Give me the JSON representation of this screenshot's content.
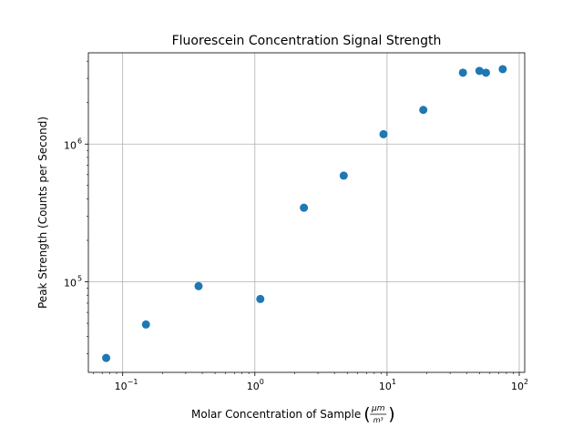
{
  "chart_data": {
    "type": "scatter",
    "title": "Fluorescein Concentration Signal Strength",
    "xlabel": {
      "text": "Molar Concentration of Sample",
      "unit_numerator": "μm",
      "unit_denominator": "m³"
    },
    "ylabel": "Peak Strength (Counts per Second)",
    "xscale": "log",
    "yscale": "log",
    "xlim": [
      0.055,
      110
    ],
    "ylim": [
      22000,
      4600000
    ],
    "grid": true,
    "marker_color": "#1f77b4",
    "x_ticks": [
      {
        "value": 0.1,
        "base": "10",
        "exp": "−1"
      },
      {
        "value": 1,
        "base": "10",
        "exp": "0"
      },
      {
        "value": 10,
        "base": "10",
        "exp": "1"
      },
      {
        "value": 100,
        "base": "10",
        "exp": "2"
      }
    ],
    "y_ticks": [
      {
        "value": 100000,
        "base": "10",
        "exp": "5"
      },
      {
        "value": 1000000,
        "base": "10",
        "exp": "6"
      }
    ],
    "points": [
      {
        "x": 0.075,
        "y": 28000
      },
      {
        "x": 0.15,
        "y": 49000
      },
      {
        "x": 0.375,
        "y": 93000
      },
      {
        "x": 1.1,
        "y": 75000
      },
      {
        "x": 2.35,
        "y": 345000
      },
      {
        "x": 4.7,
        "y": 590000
      },
      {
        "x": 9.4,
        "y": 1180000
      },
      {
        "x": 18.8,
        "y": 1770000
      },
      {
        "x": 37.5,
        "y": 3300000
      },
      {
        "x": 50,
        "y": 3400000
      },
      {
        "x": 56,
        "y": 3300000
      },
      {
        "x": 75,
        "y": 3500000
      }
    ]
  }
}
